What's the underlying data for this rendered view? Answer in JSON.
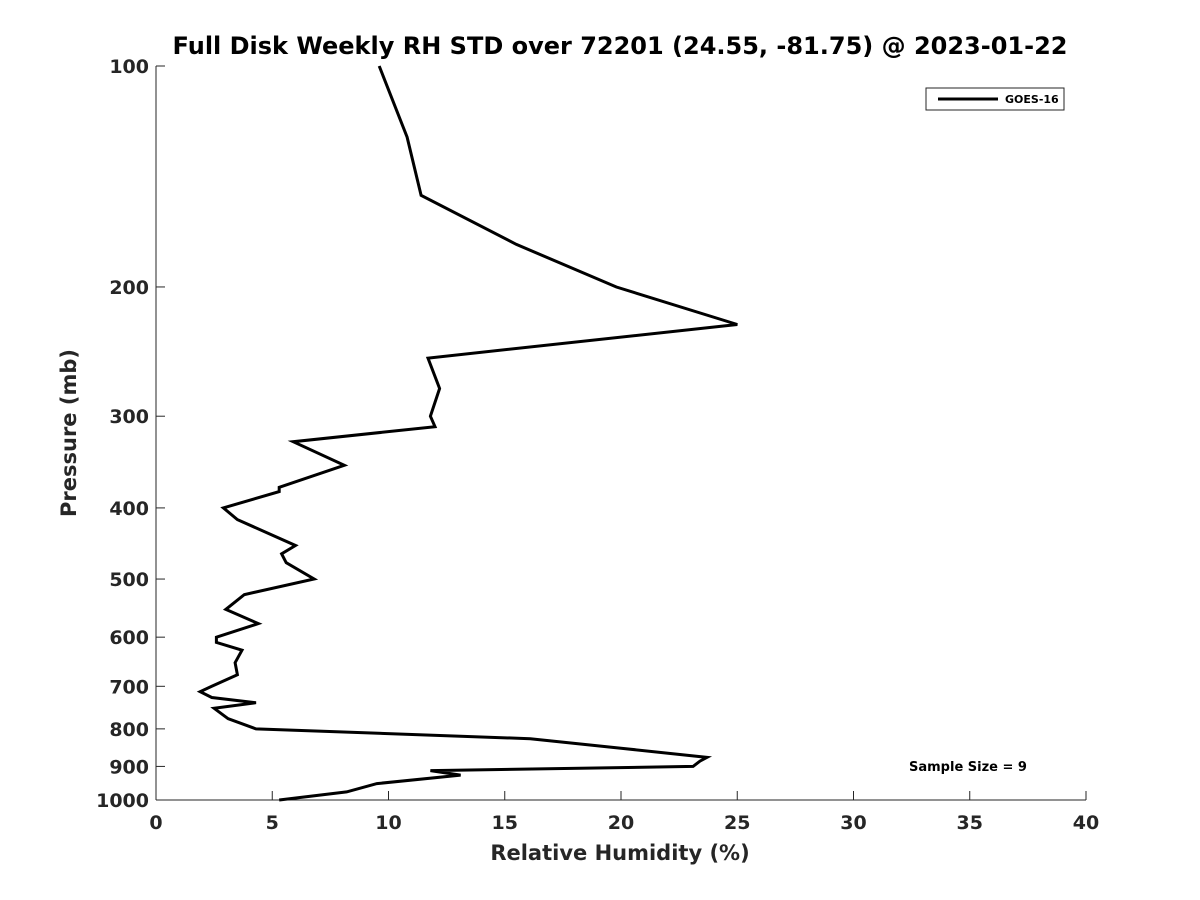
{
  "chart_data": {
    "type": "line",
    "title": "Full Disk Weekly RH STD over 72201 (24.55, -81.75) @ 2023-01-22",
    "xlabel": "Relative Humidity (%)",
    "ylabel": "Pressure (mb)",
    "xlim": [
      0,
      40
    ],
    "ylim": [
      100,
      1000
    ],
    "y_scale": "log",
    "y_inverted": true,
    "x_ticks": [
      "0",
      "5",
      "10",
      "15",
      "20",
      "25",
      "30",
      "35",
      "40"
    ],
    "y_ticks": [
      "100",
      "200",
      "300",
      "400",
      "500",
      "600",
      "700",
      "800",
      "900",
      "1000"
    ],
    "grid": false,
    "legend": {
      "position": "top-right",
      "entries": [
        "GOES-16"
      ]
    },
    "annotation": "Sample Size = 9",
    "series": [
      {
        "name": "GOES-16",
        "color": "#000000",
        "rh": [
          9.6,
          10.8,
          11.4,
          15.5,
          19.8,
          25.0,
          11.7,
          12.2,
          11.8,
          12.0,
          5.9,
          8.1,
          5.3,
          5.3,
          2.9,
          3.5,
          6.0,
          5.4,
          5.6,
          6.8,
          3.8,
          3.0,
          4.4,
          2.6,
          2.6,
          3.7,
          3.4,
          3.5,
          2.4,
          1.9,
          2.4,
          4.3,
          2.5,
          3.1,
          4.3,
          16.1,
          20.0,
          23.7,
          23.4,
          23.1,
          11.8,
          13.1,
          9.5,
          8.2,
          5.3
        ],
        "pressure": [
          100,
          125,
          150,
          175,
          200,
          225,
          250,
          275,
          300,
          310,
          325,
          350,
          375,
          380,
          400,
          415,
          450,
          462,
          475,
          500,
          525,
          550,
          575,
          600,
          610,
          625,
          650,
          675,
          700,
          712,
          725,
          737,
          750,
          775,
          800,
          825,
          850,
          875,
          885,
          900,
          912,
          925,
          950,
          975,
          1000
        ]
      }
    ]
  }
}
